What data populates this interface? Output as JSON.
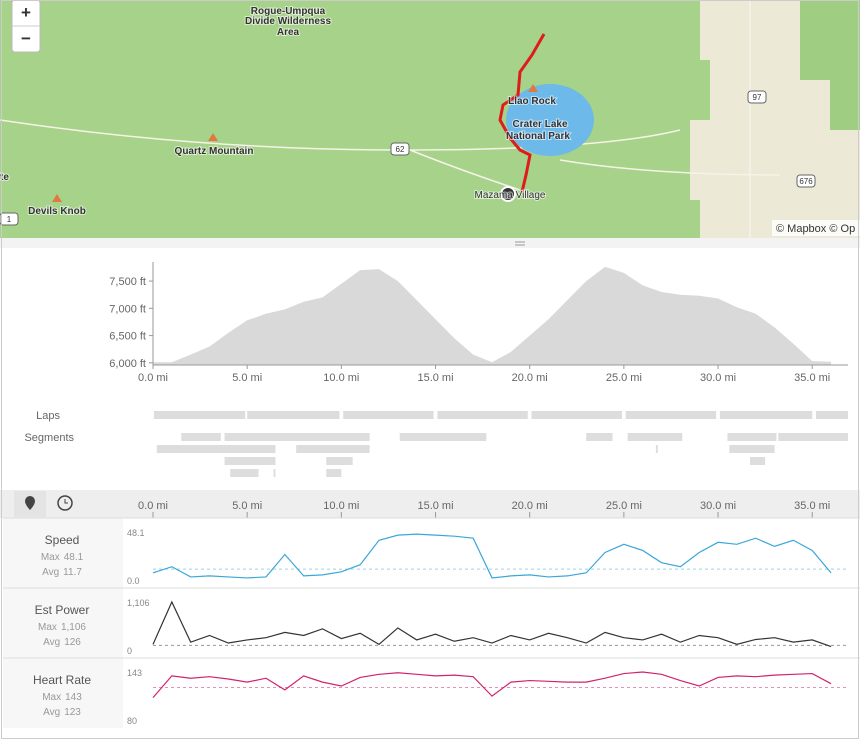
{
  "map": {
    "zoom": [
      "+",
      "−"
    ],
    "labels": [
      "Rogue-Umpqua",
      "Divide Wilderness",
      "Area",
      "Quartz Mountain",
      "Devils Knob",
      "te",
      "Llao Rock",
      "Crater Lake",
      "National Park",
      "Mazama Village"
    ],
    "road_shields": [
      "62",
      "97",
      "676",
      "1"
    ],
    "attribution": "© Mapbox © Op"
  },
  "elevation": {
    "type": "area",
    "color": "#d9d9d9",
    "x": [
      0,
      1,
      2,
      3,
      4,
      5,
      6,
      7,
      8,
      9,
      10,
      11,
      12,
      13,
      14,
      15,
      16,
      17,
      18,
      19,
      20,
      21,
      22,
      23,
      24,
      25,
      26,
      27,
      28,
      29,
      30,
      31,
      32,
      33,
      34,
      35,
      36
    ],
    "values": [
      6010,
      6010,
      6150,
      6300,
      6550,
      6780,
      6900,
      6980,
      7120,
      7200,
      7450,
      7700,
      7720,
      7500,
      7150,
      6800,
      6450,
      6150,
      6010,
      6200,
      6500,
      6800,
      7150,
      7500,
      7760,
      7650,
      7420,
      7300,
      7250,
      7230,
      7180,
      7020,
      6900,
      6650,
      6350,
      6030,
      6020
    ],
    "xlim": [
      0,
      36.9
    ],
    "ylim": [
      5960,
      7850
    ],
    "yticks": [
      {
        "value": 6000,
        "label": "6,000 ft"
      },
      {
        "value": 6500,
        "label": "6,500 ft"
      },
      {
        "value": 7000,
        "label": "7,000 ft"
      },
      {
        "value": 7500,
        "label": "7,500 ft"
      }
    ],
    "xticks": [
      {
        "value": 0,
        "label": "0.0 mi"
      },
      {
        "value": 5,
        "label": "5.0 mi"
      },
      {
        "value": 10,
        "label": "10.0 mi"
      },
      {
        "value": 15,
        "label": "15.0 mi"
      },
      {
        "value": 20,
        "label": "20.0 mi"
      },
      {
        "value": 25,
        "label": "25.0 mi"
      },
      {
        "value": 30,
        "label": "30.0 mi"
      },
      {
        "value": 35,
        "label": "35.0 mi"
      }
    ]
  },
  "laps": {
    "label": "Laps",
    "intervals": [
      [
        0.05,
        4.9
      ],
      [
        5.0,
        9.9
      ],
      [
        10.1,
        14.9
      ],
      [
        15.1,
        19.9
      ],
      [
        20.1,
        24.9
      ],
      [
        25.1,
        29.9
      ],
      [
        30.1,
        35.0
      ],
      [
        35.2,
        36.9
      ]
    ]
  },
  "segments": {
    "label": "Segments",
    "rows": [
      [
        [
          1.5,
          3.6
        ],
        [
          3.8,
          11.5
        ],
        [
          13.1,
          17.7
        ],
        [
          23.0,
          24.4
        ],
        [
          25.2,
          28.1
        ],
        [
          30.5,
          33.1
        ],
        [
          33.2,
          36.9
        ]
      ],
      [
        [
          0.2,
          6.5
        ],
        [
          7.6,
          11.5
        ],
        [
          26.7,
          26.8
        ],
        [
          30.6,
          33.0
        ]
      ],
      [
        [
          3.8,
          6.5
        ],
        [
          9.2,
          10.6
        ],
        [
          31.7,
          32.5
        ]
      ],
      [
        [
          4.1,
          5.6
        ],
        [
          6.4,
          6.5
        ],
        [
          9.2,
          10.0
        ]
      ]
    ]
  },
  "streams": {
    "x": [
      0,
      1,
      2,
      3,
      4,
      5,
      6,
      7,
      8,
      9,
      10,
      11,
      12,
      13,
      14,
      15,
      16,
      17,
      18,
      19,
      20,
      21,
      22,
      23,
      24,
      25,
      26,
      27,
      28,
      29,
      30,
      31,
      32,
      33,
      34,
      35,
      36
    ],
    "series": [
      {
        "type": "line",
        "name": "Speed",
        "color": "#3aa7d8",
        "stats": [
          {
            "name": "Max",
            "value": 48.1
          },
          {
            "name": "Avg",
            "value": 11.7
          }
        ],
        "ylim": [
          0,
          48.1
        ],
        "yticks": [
          {
            "value": 0,
            "label": "0.0"
          },
          48.1
        ],
        "values": [
          8,
          14,
          4,
          5,
          4,
          3,
          4,
          26,
          5,
          6,
          9,
          16,
          40,
          45,
          46,
          45,
          44,
          42,
          3,
          5,
          6,
          4,
          5,
          8,
          28,
          36,
          30,
          18,
          14,
          28,
          38,
          36,
          42,
          34,
          40,
          30,
          8
        ]
      },
      {
        "type": "line",
        "name": "Est Power",
        "color": "#333333",
        "stats": [
          {
            "name": "Max",
            "value": 1106,
            "value_label": "1,106"
          },
          {
            "name": "Avg",
            "value": 126
          }
        ],
        "ylim": [
          0,
          1106
        ],
        "yticks": [
          0,
          {
            "value": 1106,
            "label": "1,106"
          }
        ],
        "values": [
          150,
          1106,
          200,
          350,
          180,
          250,
          300,
          420,
          350,
          500,
          280,
          400,
          150,
          520,
          250,
          380,
          220,
          300,
          180,
          350,
          250,
          400,
          300,
          180,
          420,
          300,
          250,
          380,
          200,
          350,
          300,
          150,
          260,
          300,
          200,
          250,
          100
        ]
      },
      {
        "type": "line",
        "name": "Heart Rate",
        "color": "#d1236d",
        "stats": [
          {
            "name": "Max",
            "value": 143
          },
          {
            "name": "Avg",
            "value": 123
          }
        ],
        "ylim": [
          80,
          143
        ],
        "yticks": [
          80,
          143
        ],
        "values": [
          110,
          138,
          135,
          137,
          134,
          130,
          135,
          120,
          138,
          130,
          125,
          136,
          140,
          142,
          140,
          138,
          139,
          137,
          112,
          130,
          132,
          131,
          130,
          130,
          135,
          141,
          143,
          140,
          132,
          125,
          136,
          138,
          137,
          139,
          140,
          141,
          128
        ]
      }
    ]
  }
}
